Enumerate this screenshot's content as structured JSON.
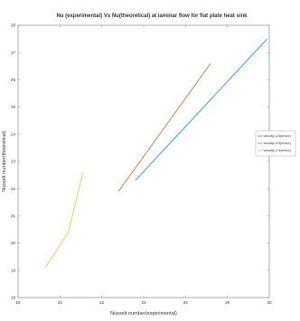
{
  "chart_data": {
    "type": "line",
    "title": "Nu (experimental)  Vs  Nu(theoretical) at laminar flow for flat plate heat sink",
    "xlabel": "Nusselt number(experimental)",
    "ylabel": "Nusselt number(theoretical)",
    "xlim": [
      18,
      30
    ],
    "ylim": [
      18,
      28
    ],
    "xticks": [
      "18",
      "20",
      "22",
      "24",
      "26",
      "28",
      "30"
    ],
    "yticks": [
      "18",
      "19",
      "20",
      "21",
      "22",
      "23",
      "24",
      "25",
      "26",
      "27",
      "28"
    ],
    "grid": false,
    "legend_position": "right",
    "series": [
      {
        "name": "velocity=3.5(m/sec)",
        "color": "#4da3c9",
        "points": [
          [
            23.6,
            22.3
          ],
          [
            29.9,
            27.5
          ]
        ]
      },
      {
        "name": "velocity=3.5(m/sec)",
        "color": "#d08b5b",
        "points": [
          [
            22.8,
            21.9
          ],
          [
            27.2,
            26.6
          ]
        ]
      },
      {
        "name": "velocity=2.9(m/sec)",
        "color": "#e8d070",
        "points": [
          [
            19.3,
            19.1
          ],
          [
            20.4,
            20.4
          ],
          [
            21.1,
            22.6
          ]
        ]
      }
    ]
  }
}
